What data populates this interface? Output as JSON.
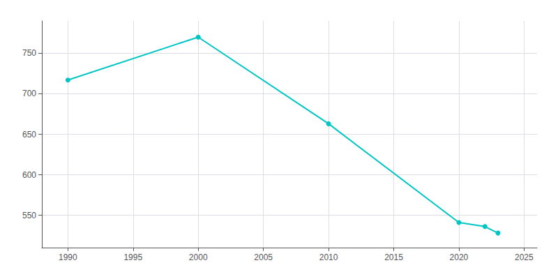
{
  "chart_data": {
    "type": "line",
    "x": [
      1990,
      2000,
      2010,
      2020,
      2022,
      2023
    ],
    "values": [
      717,
      770,
      663,
      541,
      536,
      528
    ],
    "color": "#00C5C5",
    "marker": "circle",
    "xlim": [
      1988,
      2026
    ],
    "xticks": [
      1990,
      1995,
      2000,
      2005,
      2010,
      2015,
      2020,
      2025
    ],
    "ylim": [
      510,
      790
    ],
    "yticks": [
      550,
      600,
      650,
      700,
      750
    ],
    "grid": true
  }
}
